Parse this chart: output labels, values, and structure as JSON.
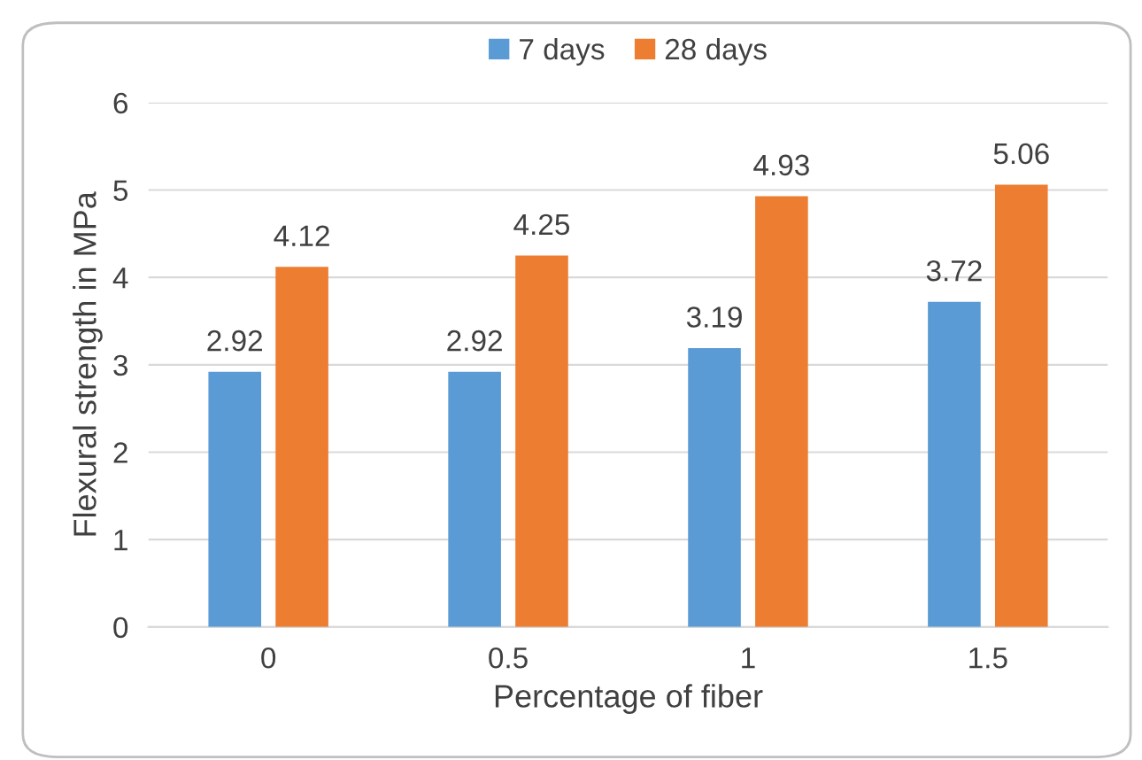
{
  "chart_data": {
    "type": "bar",
    "xlabel": "Percentage of fiber",
    "ylabel": "Flexural strength in MPa",
    "categories": [
      "0",
      "0.5",
      "1",
      "1.5"
    ],
    "series": [
      {
        "name": "7 days",
        "color": "#5b9bd5",
        "values": [
          2.92,
          2.92,
          3.19,
          3.72
        ]
      },
      {
        "name": "28 days",
        "color": "#ed7d31",
        "values": [
          4.12,
          4.25,
          4.93,
          5.06
        ]
      }
    ],
    "ylim": [
      0,
      6
    ],
    "yticks": [
      0,
      1,
      2,
      3,
      4,
      5,
      6
    ],
    "grid": "y",
    "legend": "top",
    "data_labels": true
  }
}
